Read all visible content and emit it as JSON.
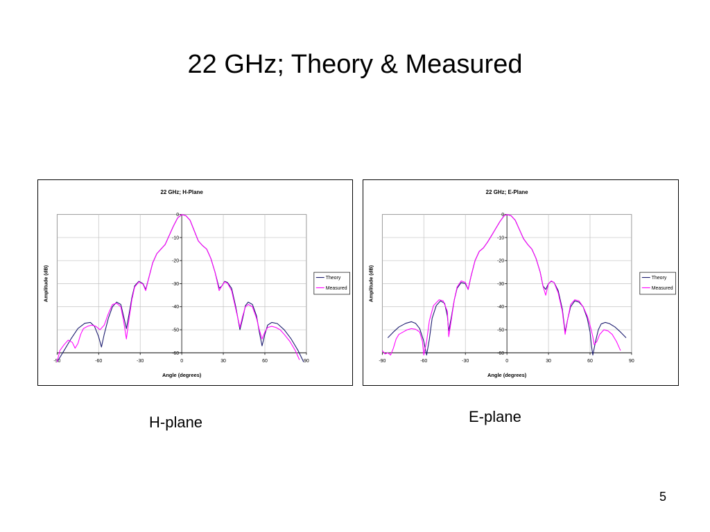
{
  "slide": {
    "title": "22 GHz; Theory & Measured",
    "caption_h": "H-plane",
    "caption_e": "E-plane",
    "page_number": "5"
  },
  "colors": {
    "theory": "#1a1a6e",
    "measured": "#ff00ff",
    "grid": "#c0c0c0"
  },
  "chart_data": [
    {
      "type": "line",
      "title": "22 GHz; H-Plane",
      "xlabel": "Angle (degrees)",
      "ylabel": "Amplitude (dB)",
      "xlim": [
        -90,
        90
      ],
      "ylim": [
        -60,
        0
      ],
      "xticks": [
        -90,
        -60,
        -30,
        0,
        30,
        60,
        90
      ],
      "yticks": [
        0,
        -10,
        -20,
        -30,
        -40,
        -50,
        -60
      ],
      "grid": true,
      "legend": "right",
      "series": [
        {
          "name": "Theory",
          "points": [
            [
              -90,
              -64
            ],
            [
              -85,
              -59
            ],
            [
              -80,
              -54
            ],
            [
              -75,
              -49.5
            ],
            [
              -70,
              -47.2
            ],
            [
              -66,
              -46.8
            ],
            [
              -63,
              -48.5
            ],
            [
              -60,
              -53
            ],
            [
              -58,
              -57.5
            ],
            [
              -56,
              -52
            ],
            [
              -53,
              -45
            ],
            [
              -50,
              -40
            ],
            [
              -47,
              -38
            ],
            [
              -44,
              -39
            ],
            [
              -42,
              -44
            ],
            [
              -40,
              -49.5
            ],
            [
              -38,
              -43
            ],
            [
              -36,
              -36
            ],
            [
              -34,
              -31
            ],
            [
              -31,
              -29
            ],
            [
              -28,
              -30
            ],
            [
              -26,
              -32.5
            ],
            [
              -24,
              -28
            ],
            [
              -21,
              -21
            ],
            [
              -18,
              -17
            ],
            [
              -15,
              -15
            ],
            [
              -12,
              -13
            ],
            [
              -9,
              -9
            ],
            [
              -6,
              -5
            ],
            [
              -3,
              -1.5
            ],
            [
              0,
              0
            ],
            [
              3,
              -0.5
            ],
            [
              6,
              -2.5
            ],
            [
              9,
              -7
            ],
            [
              12,
              -11.5
            ],
            [
              15,
              -13.5
            ],
            [
              18,
              -15
            ],
            [
              21,
              -19
            ],
            [
              24,
              -25
            ],
            [
              27,
              -32
            ],
            [
              29,
              -31
            ],
            [
              31,
              -29
            ],
            [
              33,
              -29.5
            ],
            [
              36,
              -32
            ],
            [
              39,
              -40
            ],
            [
              42,
              -50
            ],
            [
              44,
              -45
            ],
            [
              46,
              -39.5
            ],
            [
              48,
              -38
            ],
            [
              51,
              -39
            ],
            [
              54,
              -44
            ],
            [
              56,
              -51
            ],
            [
              58,
              -57
            ],
            [
              60,
              -52
            ],
            [
              62,
              -48
            ],
            [
              65,
              -46.8
            ],
            [
              69,
              -47.3
            ],
            [
              74,
              -50
            ],
            [
              79,
              -54
            ],
            [
              84,
              -59
            ],
            [
              88,
              -64
            ]
          ]
        },
        {
          "name": "Measured",
          "points": [
            [
              -90,
              -64
            ],
            [
              -88,
              -59
            ],
            [
              -85,
              -56.5
            ],
            [
              -82,
              -54.5
            ],
            [
              -79,
              -55.5
            ],
            [
              -77,
              -58
            ],
            [
              -75,
              -56
            ],
            [
              -73,
              -52
            ],
            [
              -71,
              -49.5
            ],
            [
              -68,
              -48.5
            ],
            [
              -65,
              -48
            ],
            [
              -62,
              -48.5
            ],
            [
              -59,
              -50
            ],
            [
              -56,
              -48
            ],
            [
              -53,
              -43
            ],
            [
              -50,
              -39
            ],
            [
              -47,
              -38.5
            ],
            [
              -44,
              -40
            ],
            [
              -42,
              -46
            ],
            [
              -40,
              -54
            ],
            [
              -38,
              -45
            ],
            [
              -36,
              -37
            ],
            [
              -34,
              -31.5
            ],
            [
              -31,
              -29.2
            ],
            [
              -28,
              -30.2
            ],
            [
              -26,
              -33
            ],
            [
              -24,
              -28
            ],
            [
              -21,
              -21
            ],
            [
              -18,
              -17
            ],
            [
              -15,
              -15
            ],
            [
              -12,
              -13
            ],
            [
              -9,
              -9
            ],
            [
              -6,
              -5
            ],
            [
              -3,
              -1.5
            ],
            [
              0,
              0
            ],
            [
              3,
              -0.5
            ],
            [
              6,
              -2.5
            ],
            [
              9,
              -7
            ],
            [
              12,
              -11.5
            ],
            [
              15,
              -13.5
            ],
            [
              18,
              -15
            ],
            [
              21,
              -19
            ],
            [
              24,
              -25
            ],
            [
              27,
              -33
            ],
            [
              29,
              -31
            ],
            [
              31,
              -29.2
            ],
            [
              33,
              -29.8
            ],
            [
              36,
              -33
            ],
            [
              39,
              -41
            ],
            [
              42,
              -49
            ],
            [
              44,
              -44
            ],
            [
              46,
              -40
            ],
            [
              48,
              -39
            ],
            [
              51,
              -40
            ],
            [
              54,
              -45
            ],
            [
              56,
              -50
            ],
            [
              58,
              -54
            ],
            [
              60,
              -51
            ],
            [
              62,
              -49
            ],
            [
              65,
              -48.5
            ],
            [
              68,
              -49
            ],
            [
              71,
              -50
            ],
            [
              74,
              -52
            ],
            [
              78,
              -55
            ],
            [
              82,
              -59
            ],
            [
              85,
              -63
            ]
          ]
        }
      ]
    },
    {
      "type": "line",
      "title": "22 GHz; E-Plane",
      "xlabel": "Angle (degrees)",
      "ylabel": "Amplitude (dB)",
      "xlim": [
        -90,
        90
      ],
      "ylim": [
        -60,
        0
      ],
      "xticks": [
        -90,
        -60,
        -30,
        0,
        30,
        60,
        90
      ],
      "yticks": [
        0,
        -10,
        -20,
        -30,
        -40,
        -50,
        -60
      ],
      "grid": true,
      "legend": "right",
      "series": [
        {
          "name": "Theory",
          "points": [
            [
              -86,
              -53.5
            ],
            [
              -82,
              -51
            ],
            [
              -78,
              -48.8
            ],
            [
              -73,
              -47.2
            ],
            [
              -69,
              -46.5
            ],
            [
              -66,
              -47.2
            ],
            [
              -63,
              -49.5
            ],
            [
              -60,
              -55
            ],
            [
              -58,
              -61
            ],
            [
              -56,
              -54
            ],
            [
              -54,
              -45
            ],
            [
              -51,
              -39.5
            ],
            [
              -48,
              -37.5
            ],
            [
              -45,
              -38.5
            ],
            [
              -43,
              -44
            ],
            [
              -42,
              -50.5
            ],
            [
              -40,
              -44
            ],
            [
              -38,
              -37
            ],
            [
              -36,
              -32
            ],
            [
              -33,
              -29.5
            ],
            [
              -30,
              -30
            ],
            [
              -28,
              -32.5
            ],
            [
              -26,
              -27
            ],
            [
              -23,
              -20
            ],
            [
              -20,
              -16
            ],
            [
              -17,
              -14.5
            ],
            [
              -14,
              -12
            ],
            [
              -11,
              -9
            ],
            [
              -8,
              -6
            ],
            [
              -5,
              -3
            ],
            [
              -2,
              -0.5
            ],
            [
              0,
              0
            ],
            [
              3,
              -0.5
            ],
            [
              6,
              -2.5
            ],
            [
              9,
              -6.5
            ],
            [
              12,
              -10.5
            ],
            [
              15,
              -13
            ],
            [
              18,
              -15
            ],
            [
              21,
              -19
            ],
            [
              24,
              -25
            ],
            [
              26,
              -31
            ],
            [
              28,
              -32.5
            ],
            [
              30,
              -30
            ],
            [
              32,
              -29
            ],
            [
              34,
              -29.5
            ],
            [
              37,
              -33
            ],
            [
              40,
              -41
            ],
            [
              42,
              -51
            ],
            [
              44,
              -45
            ],
            [
              46,
              -40
            ],
            [
              49,
              -37.5
            ],
            [
              52,
              -38
            ],
            [
              55,
              -40
            ],
            [
              58,
              -45
            ],
            [
              60,
              -51
            ],
            [
              61,
              -57
            ],
            [
              62,
              -61
            ],
            [
              64,
              -55
            ],
            [
              66,
              -50
            ],
            [
              68,
              -47.5
            ],
            [
              71,
              -46.8
            ],
            [
              74,
              -47.3
            ],
            [
              78,
              -48.8
            ],
            [
              82,
              -51
            ],
            [
              86,
              -53.5
            ]
          ]
        },
        {
          "name": "Measured",
          "points": [
            [
              -90,
              -59
            ],
            [
              -88,
              -60.5
            ],
            [
              -86,
              -60
            ],
            [
              -84,
              -61
            ],
            [
              -82,
              -58
            ],
            [
              -80,
              -54
            ],
            [
              -78,
              -52
            ],
            [
              -75,
              -51
            ],
            [
              -72,
              -50
            ],
            [
              -69,
              -49.5
            ],
            [
              -66,
              -49.8
            ],
            [
              -63,
              -51
            ],
            [
              -61,
              -55
            ],
            [
              -60,
              -61
            ],
            [
              -58,
              -55
            ],
            [
              -56,
              -46
            ],
            [
              -53,
              -39.5
            ],
            [
              -49,
              -37
            ],
            [
              -46,
              -37.5
            ],
            [
              -43,
              -42
            ],
            [
              -42,
              -53
            ],
            [
              -40,
              -45
            ],
            [
              -38,
              -37
            ],
            [
              -36,
              -31.5
            ],
            [
              -33,
              -28.8
            ],
            [
              -30,
              -29.5
            ],
            [
              -28,
              -32.5
            ],
            [
              -26,
              -27
            ],
            [
              -23,
              -20
            ],
            [
              -20,
              -16
            ],
            [
              -17,
              -14.5
            ],
            [
              -14,
              -12
            ],
            [
              -11,
              -9
            ],
            [
              -8,
              -6
            ],
            [
              -5,
              -3
            ],
            [
              -2,
              -0.5
            ],
            [
              0,
              0
            ],
            [
              3,
              -0.5
            ],
            [
              6,
              -2.5
            ],
            [
              9,
              -6.5
            ],
            [
              12,
              -10.5
            ],
            [
              15,
              -13
            ],
            [
              18,
              -15
            ],
            [
              21,
              -19
            ],
            [
              24,
              -25
            ],
            [
              26,
              -31
            ],
            [
              28,
              -35
            ],
            [
              30,
              -30
            ],
            [
              32,
              -28.8
            ],
            [
              34,
              -29.5
            ],
            [
              37,
              -34
            ],
            [
              40,
              -42
            ],
            [
              42,
              -52
            ],
            [
              44,
              -45
            ],
            [
              46,
              -39
            ],
            [
              49,
              -37
            ],
            [
              52,
              -37.5
            ],
            [
              55,
              -40
            ],
            [
              58,
              -44
            ],
            [
              60,
              -48
            ],
            [
              62,
              -53
            ],
            [
              63,
              -56.5
            ],
            [
              65,
              -55
            ],
            [
              67,
              -52
            ],
            [
              70,
              -50
            ],
            [
              73,
              -50.5
            ],
            [
              76,
              -52
            ],
            [
              79,
              -55
            ],
            [
              82,
              -59
            ]
          ]
        }
      ]
    }
  ]
}
